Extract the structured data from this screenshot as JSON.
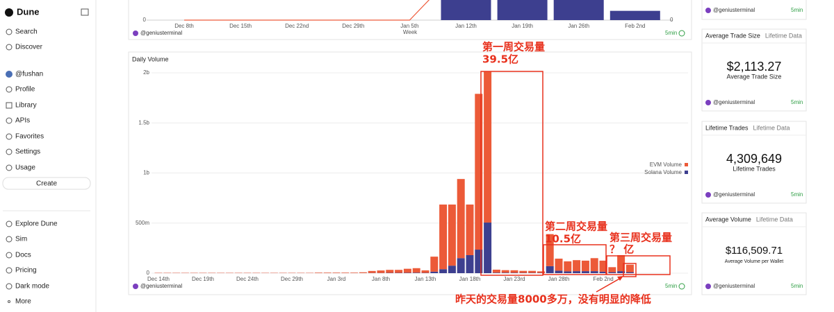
{
  "sidebar": {
    "brand": "Dune",
    "nav": [
      "Search",
      "Discover"
    ],
    "user": "@fushan",
    "menu": [
      "Profile",
      "Library",
      "APIs",
      "Favorites",
      "Settings",
      "Usage"
    ],
    "create": "Create",
    "footer": [
      "Explore Dune",
      "Sim",
      "Docs",
      "Pricing",
      "Dark mode",
      "More"
    ]
  },
  "panels": [
    {
      "author": "@geniusterminal",
      "refresh": "5min"
    },
    {
      "author": "@geniusterminal",
      "refresh": "5min"
    }
  ],
  "cards": [
    {
      "author": "@geniusterminal",
      "refresh": "5min"
    },
    {
      "title": "Average Trade Size",
      "subtitle": "Lifetime Data",
      "value": "$2,113.27",
      "caption": "Average Trade Size",
      "author": "@geniusterminal",
      "refresh": "5min"
    },
    {
      "title": "Lifetime Trades",
      "subtitle": "Lifetime Data",
      "value": "4,309,649",
      "caption": "Lifetime Trades",
      "author": "@geniusterminal",
      "refresh": "5min"
    },
    {
      "title": "Average Volume",
      "subtitle": "Lifetime Data",
      "value": "$116,509.71",
      "caption": "Average Volume per Wallet",
      "author": "@geniusterminal",
      "refresh": "5min"
    }
  ],
  "chart_data": [
    {
      "type": "bar",
      "x_label": "Week",
      "categories": [
        "Dec 8th",
        "Dec 15th",
        "Dec 22nd",
        "Dec 29th",
        "Jan 5th",
        "Jan 12th",
        "Jan 19th",
        "Jan 26th",
        "Feb 2nd"
      ],
      "series": [
        {
          "color": "#3d3f8f",
          "values": [
            0,
            0,
            0,
            0,
            0,
            100,
            100,
            100,
            15
          ]
        },
        {
          "type": "line",
          "color": "#ee5a3a",
          "values": [
            0,
            0,
            0,
            0,
            0,
            95,
            null,
            null,
            null
          ]
        }
      ],
      "ylim": [
        0,
        100
      ],
      "yticks": [
        0
      ],
      "y2ticks": [
        0
      ]
    },
    {
      "type": "bar",
      "stacked": true,
      "title": "Daily Volume",
      "legend": "right",
      "grid": true,
      "categories": [
        "Dec 14th",
        null,
        null,
        null,
        null,
        "Dec 19th",
        null,
        null,
        null,
        null,
        "Dec 24th",
        null,
        null,
        null,
        null,
        "Dec 29th",
        null,
        null,
        null,
        null,
        "Jan 3rd",
        null,
        null,
        null,
        null,
        "Jan 8th",
        null,
        null,
        null,
        null,
        "Jan 13th",
        null,
        null,
        null,
        null,
        "Jan 18th",
        null,
        null,
        null,
        null,
        "Jan 23rd",
        null,
        null,
        null,
        null,
        "Jan 28th",
        null,
        null,
        null,
        null,
        "Feb 2nd",
        null,
        null,
        null
      ],
      "series": [
        {
          "name": "EVM Volume",
          "color": "#ec5a38",
          "values": [
            3000000,
            3000000,
            3000000,
            3000000,
            3000000,
            3000000,
            3000000,
            3000000,
            3000000,
            3000000,
            3000000,
            3000000,
            3000000,
            3000000,
            3000000,
            3000000,
            3000000,
            3000000,
            5000000,
            5000000,
            5000000,
            5000000,
            5000000,
            8000000,
            20000000,
            25000000,
            30000000,
            30000000,
            40000000,
            45000000,
            25000000,
            150000000,
            645000000,
            610000000,
            790000000,
            505000000,
            1555000000,
            1505000000,
            30000000,
            25000000,
            25000000,
            20000000,
            20000000,
            15000000,
            320000000,
            120000000,
            100000000,
            110000000,
            105000000,
            130000000,
            110000000,
            50000000,
            160000000,
            75000000
          ]
        },
        {
          "name": "Solana Volume",
          "color": "#3d3f8f",
          "values": [
            1000000,
            1000000,
            1000000,
            1000000,
            1000000,
            1000000,
            1000000,
            1000000,
            1000000,
            1000000,
            1000000,
            1000000,
            1000000,
            1000000,
            1000000,
            1000000,
            1000000,
            1000000,
            1000000,
            1000000,
            1000000,
            1000000,
            1000000,
            1000000,
            2000000,
            2000000,
            3000000,
            3000000,
            4000000,
            5000000,
            3000000,
            15000000,
            40000000,
            75000000,
            150000000,
            180000000,
            235000000,
            505000000,
            5000000,
            5000000,
            4000000,
            3000000,
            3000000,
            3000000,
            70000000,
            25000000,
            18000000,
            20000000,
            20000000,
            20000000,
            15000000,
            10000000,
            20000000,
            10000000
          ]
        }
      ],
      "ylim": [
        0,
        2000000000
      ],
      "yticks": [
        0,
        {
          "value": 500000000,
          "label": "500m"
        },
        {
          "value": 1000000000,
          "label": "1b"
        },
        {
          "value": 1500000000,
          "label": "1.5b"
        },
        {
          "value": 2000000000,
          "label": "2b"
        }
      ],
      "annotations": [
        "第一周交易量",
        "39.5亿",
        "第二周交易量",
        "10.5亿",
        "第三周交易量",
        "？ 亿",
        "昨天的交易量8000多万，没有明显的降低"
      ]
    }
  ]
}
